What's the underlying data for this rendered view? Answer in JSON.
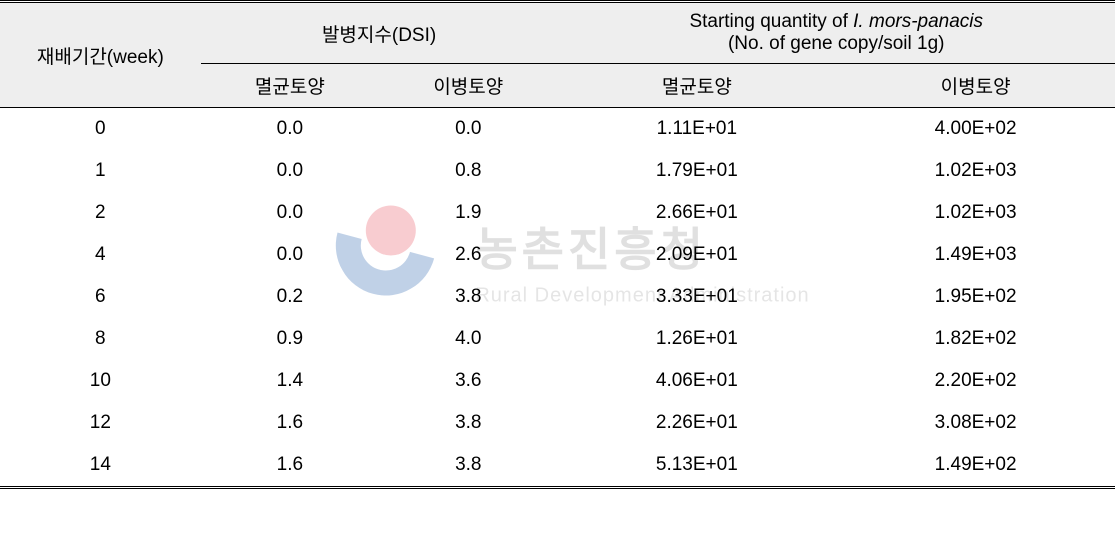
{
  "table": {
    "headers": {
      "week": "재배기간(week)",
      "dsi_group": "발병지수(DSI)",
      "qty_group_prefix": "Starting quantity of ",
      "qty_group_italic": "I. mors-panacis",
      "qty_group_suffix": "(No. of gene copy/soil 1g)",
      "sterile_soil": "멸균토양",
      "diseased_soil": "이병토양"
    },
    "rows": [
      {
        "week": "0",
        "dsi_sterile": "0.0",
        "dsi_diseased": "0.0",
        "qty_sterile": "1.11E+01",
        "qty_diseased": "4.00E+02"
      },
      {
        "week": "1",
        "dsi_sterile": "0.0",
        "dsi_diseased": "0.8",
        "qty_sterile": "1.79E+01",
        "qty_diseased": "1.02E+03"
      },
      {
        "week": "2",
        "dsi_sterile": "0.0",
        "dsi_diseased": "1.9",
        "qty_sterile": "2.66E+01",
        "qty_diseased": "1.02E+03"
      },
      {
        "week": "4",
        "dsi_sterile": "0.0",
        "dsi_diseased": "2.6",
        "qty_sterile": "2.09E+01",
        "qty_diseased": "1.49E+03"
      },
      {
        "week": "6",
        "dsi_sterile": "0.2",
        "dsi_diseased": "3.8",
        "qty_sterile": "3.33E+01",
        "qty_diseased": "1.95E+02"
      },
      {
        "week": "8",
        "dsi_sterile": "0.9",
        "dsi_diseased": "4.0",
        "qty_sterile": "1.26E+01",
        "qty_diseased": "1.82E+02"
      },
      {
        "week": "10",
        "dsi_sterile": "1.4",
        "dsi_diseased": "3.6",
        "qty_sterile": "4.06E+01",
        "qty_diseased": "2.20E+02"
      },
      {
        "week": "12",
        "dsi_sterile": "1.6",
        "dsi_diseased": "3.8",
        "qty_sterile": "2.26E+01",
        "qty_diseased": "3.08E+02"
      },
      {
        "week": "14",
        "dsi_sterile": "1.6",
        "dsi_diseased": "3.8",
        "qty_sterile": "5.13E+01",
        "qty_diseased": "1.49E+02"
      }
    ]
  },
  "watermark": {
    "korean": "농촌진흥청",
    "english": "Rural Development Administration"
  },
  "styling": {
    "background_color": "#ffffff",
    "header_bg": "#eeeeee",
    "border_color": "#000000",
    "font_size_body": 19,
    "font_size_wm_kr": 46,
    "font_size_wm_en": 20,
    "row_padding": 10
  }
}
